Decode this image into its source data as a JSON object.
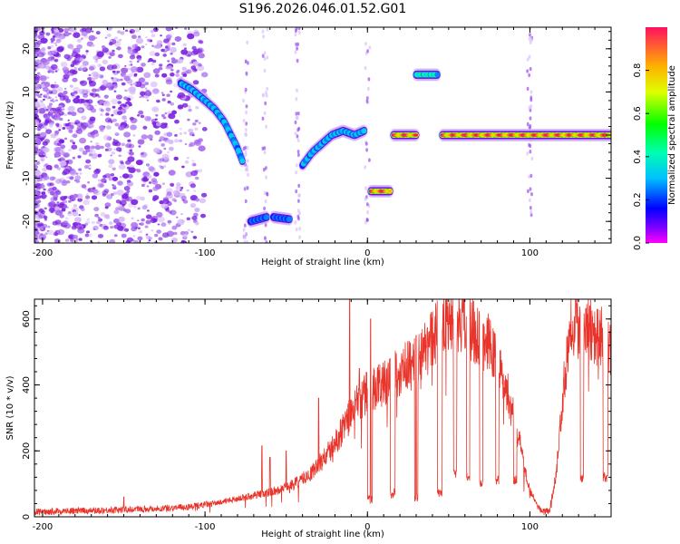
{
  "title": "S196.2026.046.01.52.G01",
  "chart_data": [
    {
      "type": "heatmap",
      "xlabel": "Height of straight line (km)",
      "ylabel": "Frequency (Hz)",
      "xlim": [
        -205,
        150
      ],
      "ylim": [
        -25,
        25
      ],
      "xticks": [
        -200,
        -100,
        0,
        100
      ],
      "yticks": [
        -20,
        -10,
        0,
        10,
        20
      ],
      "colorbar": {
        "label": "Normalized spectral amplitude",
        "range": [
          0,
          1
        ],
        "ticks": [
          "0.0",
          "0.2",
          "0.4",
          "0.6",
          "0.8"
        ],
        "tick_values": [
          0.0,
          0.2,
          0.4,
          0.6,
          0.8
        ]
      },
      "tracks": [
        {
          "x": [
            -115,
            -108,
            -100,
            -94,
            -88,
            -84,
            -80,
            -77
          ],
          "freq": [
            12,
            10.5,
            8,
            6,
            3,
            0,
            -3,
            -6
          ],
          "amp": 0.45
        },
        {
          "x": [
            -72,
            -62
          ],
          "freq": [
            -20,
            -19
          ],
          "amp": 0.35
        },
        {
          "x": [
            -58,
            -48
          ],
          "freq": [
            -19,
            -19.5
          ],
          "amp": 0.35
        },
        {
          "x": [
            -40,
            -34,
            -28,
            -22,
            -15,
            -8,
            -2
          ],
          "freq": [
            -7,
            -4,
            -2,
            0,
            1,
            0,
            1
          ],
          "amp": 0.45
        },
        {
          "x": [
            2,
            14
          ],
          "freq": [
            -13,
            -13
          ],
          "amp": 1.0
        },
        {
          "x": [
            16,
            30
          ],
          "freq": [
            0,
            0
          ],
          "amp": 1.0
        },
        {
          "x": [
            30,
            43
          ],
          "freq": [
            14,
            14
          ],
          "amp": 0.6
        },
        {
          "x": [
            46,
            150
          ],
          "freq": [
            0,
            0
          ],
          "amp": 1.0
        }
      ]
    },
    {
      "type": "line",
      "xlabel": "Height of straight line (km)",
      "ylabel": "SNR (10 * v/v)",
      "xlim": [
        -205,
        150
      ],
      "ylim": [
        0,
        660
      ],
      "xticks": [
        -200,
        -100,
        0,
        100
      ],
      "yticks": [
        0,
        200,
        400,
        600
      ],
      "color": "#e8342a",
      "envelope": {
        "x": [
          -205,
          -160,
          -130,
          -110,
          -95,
          -80,
          -65,
          -55,
          -45,
          -35,
          -28,
          -20,
          -15,
          -8,
          0,
          8,
          15,
          22,
          30,
          35,
          40,
          45,
          50,
          55,
          60,
          65,
          70,
          75,
          80,
          85,
          90,
          95,
          100,
          105,
          108,
          112,
          116,
          120,
          125,
          130,
          135,
          140,
          145,
          150
        ],
        "y": [
          15,
          20,
          25,
          30,
          40,
          55,
          70,
          80,
          100,
          130,
          170,
          220,
          270,
          330,
          380,
          400,
          430,
          450,
          470,
          500,
          540,
          600,
          610,
          600,
          590,
          570,
          540,
          520,
          470,
          400,
          300,
          200,
          80,
          30,
          15,
          20,
          120,
          350,
          600,
          580,
          590,
          560,
          540,
          500
        ]
      },
      "dips": [
        {
          "x": [
            0,
            3
          ],
          "y": 50
        },
        {
          "x": [
            14,
            17
          ],
          "y": 70
        },
        {
          "x": [
            29,
            31
          ],
          "y": 60
        },
        {
          "x": [
            43,
            46
          ],
          "y": 70
        },
        {
          "x": [
            53,
            55
          ],
          "y": 130
        },
        {
          "x": [
            61,
            63
          ],
          "y": 120
        },
        {
          "x": [
            69,
            71
          ],
          "y": 100
        },
        {
          "x": [
            79,
            81
          ],
          "y": 110
        },
        {
          "x": [
            90,
            92
          ],
          "y": 110
        },
        {
          "x": [
            131,
            133
          ],
          "y": 120
        },
        {
          "x": [
            145,
            148
          ],
          "y": 120
        }
      ],
      "spikes": [
        {
          "x": -150,
          "y": 60
        },
        {
          "x": -65,
          "y": 215
        },
        {
          "x": -60,
          "y": 180
        },
        {
          "x": -50,
          "y": 200
        },
        {
          "x": -30,
          "y": 360
        },
        {
          "x": -11,
          "y": 660
        },
        {
          "x": -5,
          "y": 450
        },
        {
          "x": 2,
          "y": 600
        },
        {
          "x": 30,
          "y": 550
        }
      ]
    }
  ]
}
